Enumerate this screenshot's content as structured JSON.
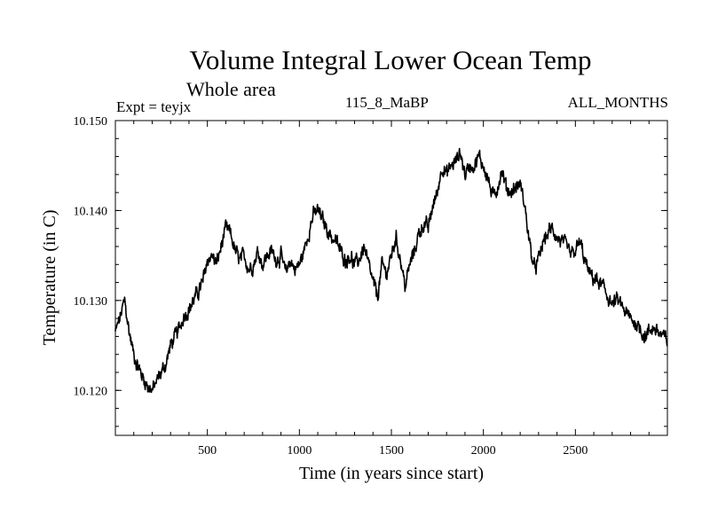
{
  "header": {
    "title": "Volume Integral Lower Ocean Temp",
    "subtitle": "Whole area",
    "experiment": "Expt = teyjx",
    "period": "115_8_MaBP",
    "months": "ALL_MONTHS"
  },
  "chart_data": {
    "type": "line",
    "title": "Volume Integral Lower Ocean Temp",
    "subtitle": "Whole area",
    "xlabel": "Time (in years since start)",
    "ylabel": "Temperature (in C)",
    "xlim": [
      0,
      3000
    ],
    "ylim": [
      10.115,
      10.15
    ],
    "xticks": [
      500,
      1000,
      1500,
      2000,
      2500
    ],
    "xtick_labels": [
      "500",
      "1000",
      "1500",
      "2000",
      "2500"
    ],
    "yticks": [
      10.12,
      10.13,
      10.14,
      10.15
    ],
    "ytick_labels": [
      "10.120",
      "10.130",
      "10.140",
      "10.150"
    ],
    "grid": false,
    "series": [
      {
        "name": "Volume integral lower ocean temperature",
        "x": [
          0,
          25,
          50,
          75,
          100,
          125,
          150,
          175,
          200,
          225,
          250,
          275,
          300,
          325,
          350,
          375,
          400,
          425,
          450,
          475,
          500,
          525,
          550,
          575,
          600,
          625,
          650,
          675,
          700,
          725,
          750,
          775,
          800,
          825,
          850,
          875,
          900,
          925,
          950,
          975,
          1000,
          1025,
          1050,
          1075,
          1100,
          1125,
          1150,
          1175,
          1200,
          1225,
          1250,
          1275,
          1300,
          1325,
          1350,
          1375,
          1400,
          1425,
          1450,
          1475,
          1500,
          1525,
          1550,
          1575,
          1600,
          1625,
          1650,
          1675,
          1700,
          1725,
          1750,
          1775,
          1800,
          1825,
          1850,
          1875,
          1900,
          1925,
          1950,
          1975,
          2000,
          2025,
          2050,
          2075,
          2100,
          2125,
          2150,
          2175,
          2200,
          2225,
          2250,
          2275,
          2300,
          2325,
          2350,
          2375,
          2400,
          2425,
          2450,
          2475,
          2500,
          2525,
          2550,
          2575,
          2600,
          2625,
          2650,
          2675,
          2700,
          2725,
          2750,
          2775,
          2800,
          2825,
          2850,
          2875,
          2900,
          2925,
          2950,
          2975,
          3000
        ],
        "values": [
          10.1265,
          10.128,
          10.13,
          10.1265,
          10.124,
          10.1225,
          10.1215,
          10.1205,
          10.12,
          10.121,
          10.122,
          10.123,
          10.125,
          10.126,
          10.127,
          10.1285,
          10.129,
          10.13,
          10.131,
          10.132,
          10.1345,
          10.135,
          10.134,
          10.136,
          10.138,
          10.1375,
          10.1355,
          10.1345,
          10.135,
          10.1335,
          10.134,
          10.1355,
          10.134,
          10.135,
          10.1355,
          10.1345,
          10.135,
          10.133,
          10.1345,
          10.1335,
          10.134,
          10.1355,
          10.1375,
          10.1395,
          10.14,
          10.139,
          10.138,
          10.137,
          10.1365,
          10.1355,
          10.1345,
          10.135,
          10.134,
          10.1345,
          10.136,
          10.134,
          10.132,
          10.1305,
          10.134,
          10.133,
          10.135,
          10.137,
          10.1345,
          10.1315,
          10.134,
          10.1355,
          10.1375,
          10.1385,
          10.138,
          10.1405,
          10.142,
          10.145,
          10.144,
          10.145,
          10.1455,
          10.1465,
          10.144,
          10.145,
          10.145,
          10.146,
          10.145,
          10.1435,
          10.1415,
          10.1425,
          10.1445,
          10.1425,
          10.142,
          10.1425,
          10.143,
          10.1405,
          10.1365,
          10.1335,
          10.1345,
          10.1365,
          10.1375,
          10.138,
          10.137,
          10.1365,
          10.136,
          10.135,
          10.1355,
          10.1365,
          10.1345,
          10.133,
          10.1325,
          10.132,
          10.1315,
          10.1305,
          10.1295,
          10.13,
          10.1295,
          10.1285,
          10.128,
          10.1275,
          10.127,
          10.126,
          10.1265,
          10.127,
          10.1265,
          10.126,
          10.1255
        ]
      }
    ]
  }
}
